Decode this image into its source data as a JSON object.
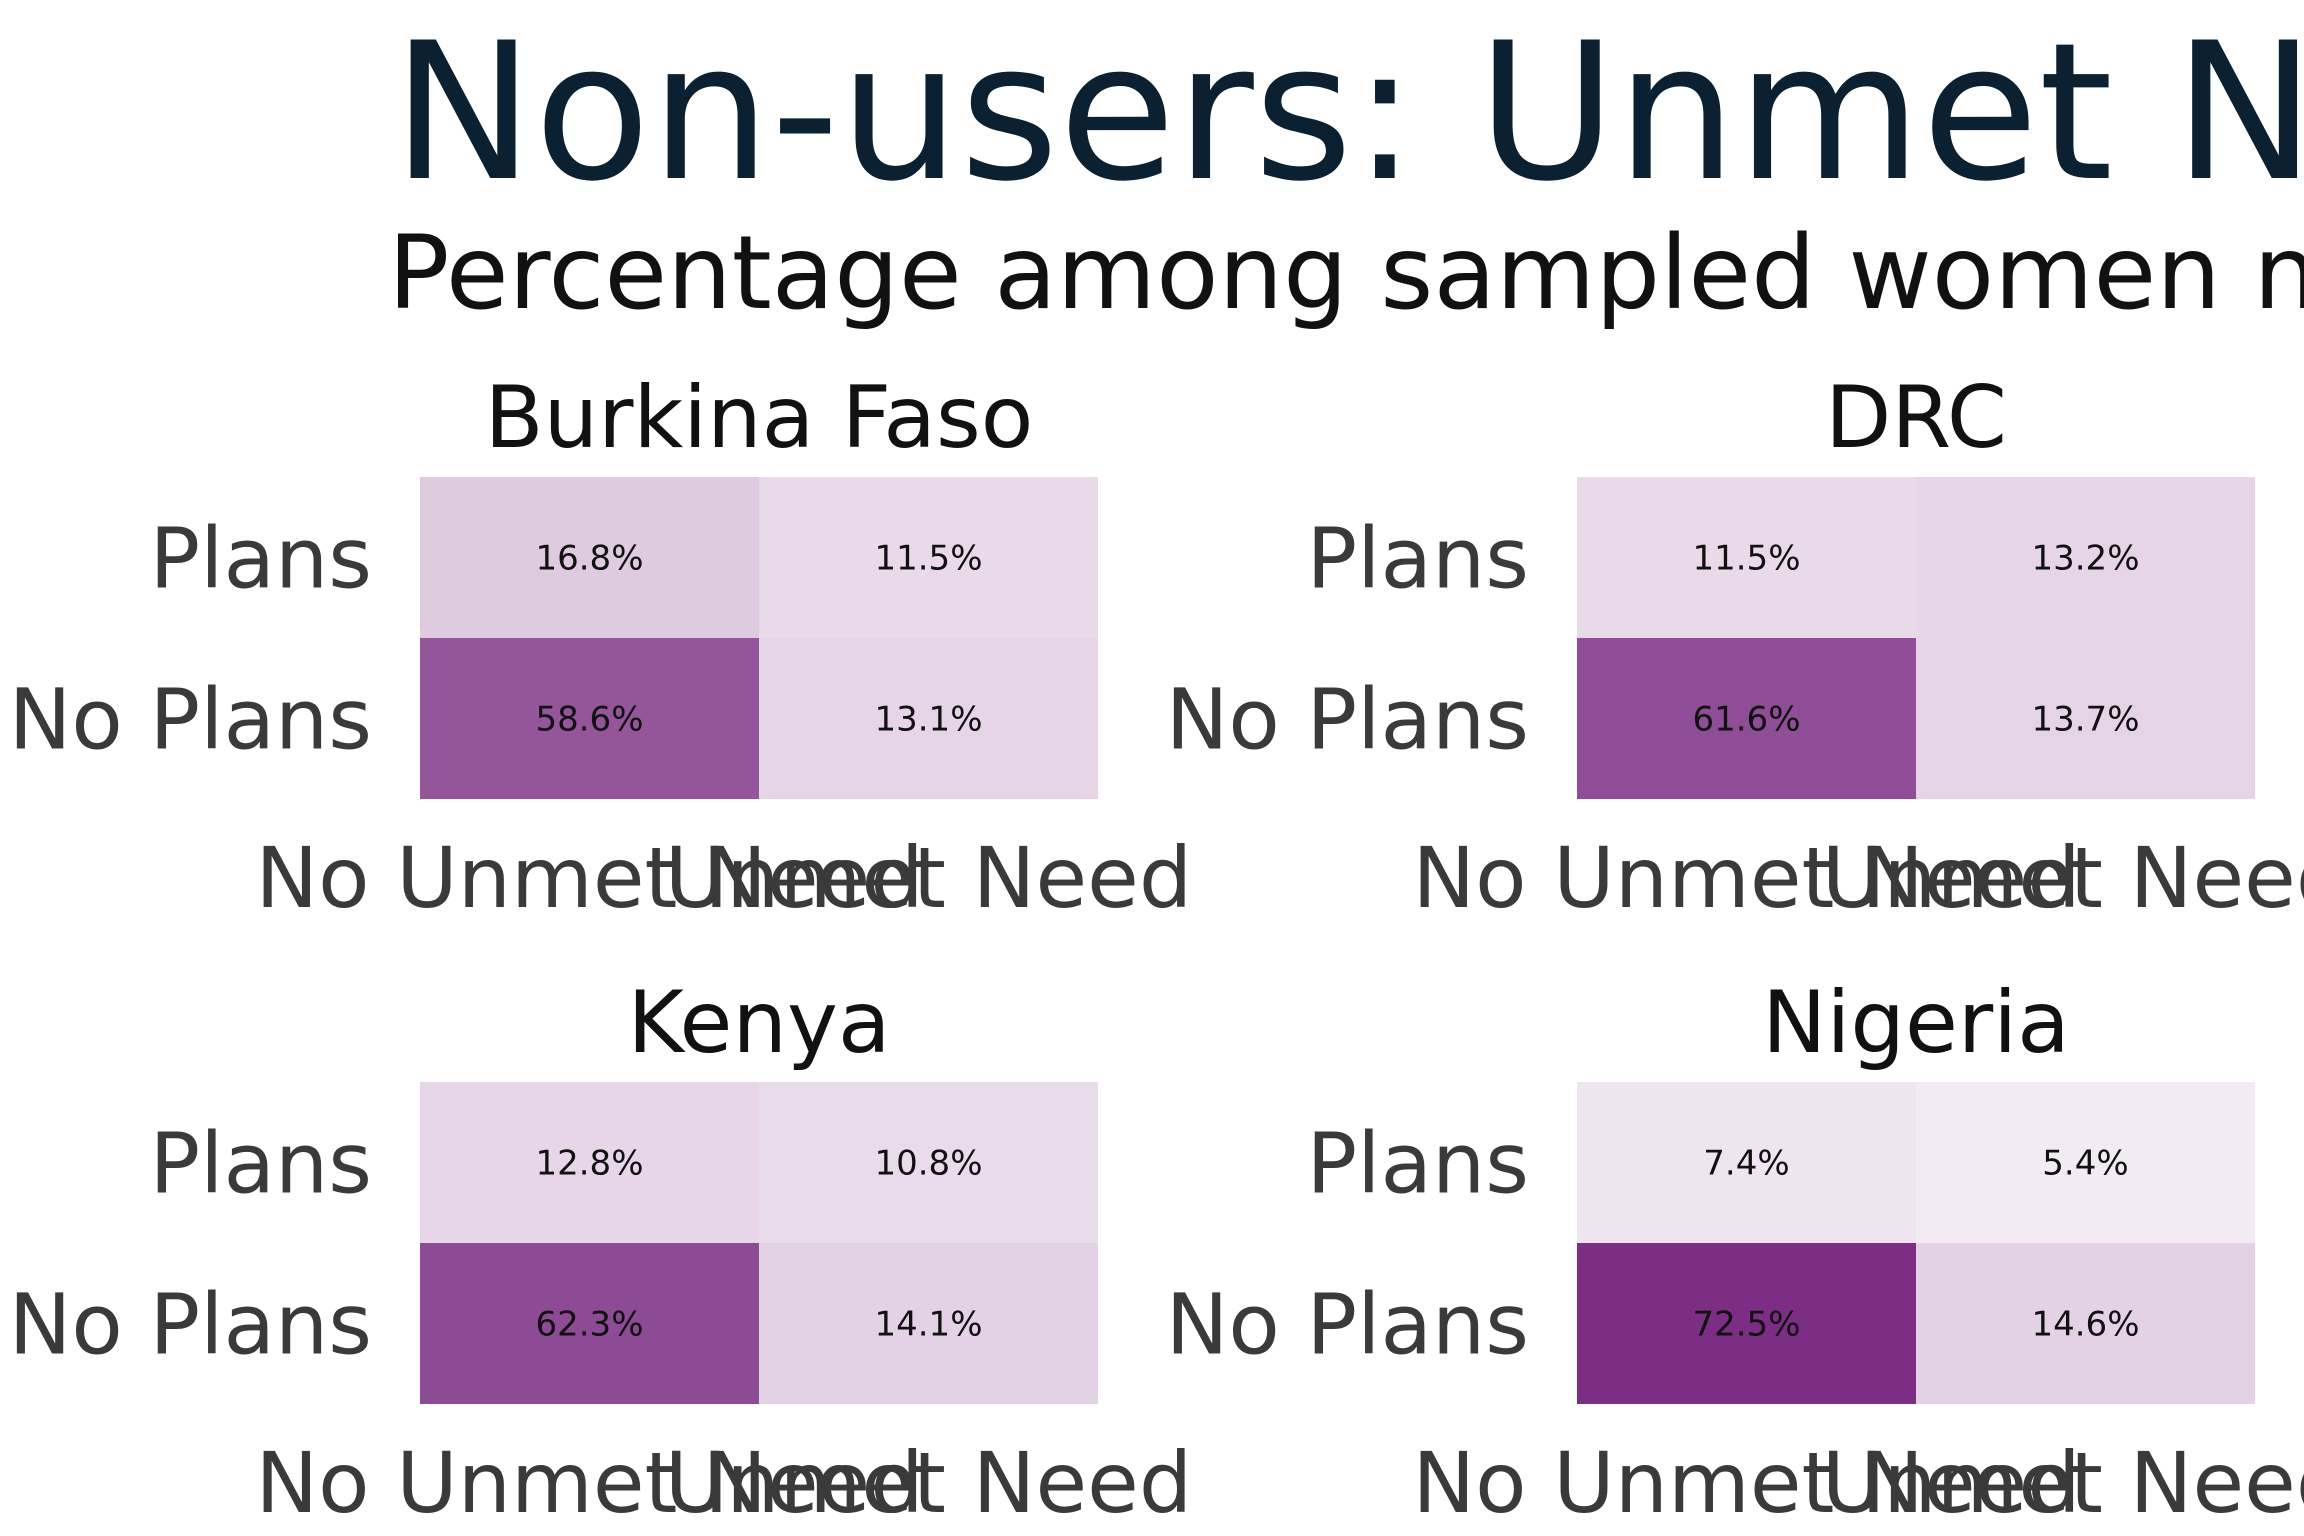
{
  "chart_data": {
    "type": "heatmap",
    "title": "Non-users: Unmet Need",
    "subtitle": "Percentage among sampled women n",
    "color_low": "#f3ebf3",
    "color_high": "#7b2e84",
    "panels": [
      {
        "name": "Burkina Faso",
        "rows": [
          "Plans",
          "No Plans"
        ],
        "columns": [
          "No Unmet Need",
          "Unmet Need"
        ],
        "values": [
          [
            16.8,
            11.5
          ],
          [
            58.6,
            13.1
          ]
        ],
        "labels": [
          [
            "16.8%",
            "11.5%"
          ],
          [
            "58.6%",
            "13.1%"
          ]
        ]
      },
      {
        "name": "DRC",
        "rows": [
          "Plans",
          "No Plans"
        ],
        "columns": [
          "No Unmet Need",
          "Unmet Need"
        ],
        "values": [
          [
            11.5,
            13.2
          ],
          [
            61.6,
            13.7
          ]
        ],
        "labels": [
          [
            "11.5%",
            "13.2%"
          ],
          [
            "61.6%",
            "13.7%"
          ]
        ]
      },
      {
        "name": "Kenya",
        "rows": [
          "Plans",
          "No Plans"
        ],
        "columns": [
          "No Unmet Need",
          "Unmet Need"
        ],
        "values": [
          [
            12.8,
            10.8
          ],
          [
            62.3,
            14.1
          ]
        ],
        "labels": [
          [
            "12.8%",
            "10.8%"
          ],
          [
            "62.3%",
            "14.1%"
          ]
        ]
      },
      {
        "name": "Nigeria",
        "rows": [
          "Plans",
          "No Plans"
        ],
        "columns": [
          "No Unmet Need",
          "Unmet Need"
        ],
        "values": [
          [
            7.4,
            5.4
          ],
          [
            72.5,
            14.6
          ]
        ],
        "labels": [
          [
            "7.4%",
            "5.4%"
          ],
          [
            "72.5%",
            "14.6%"
          ]
        ]
      }
    ]
  }
}
